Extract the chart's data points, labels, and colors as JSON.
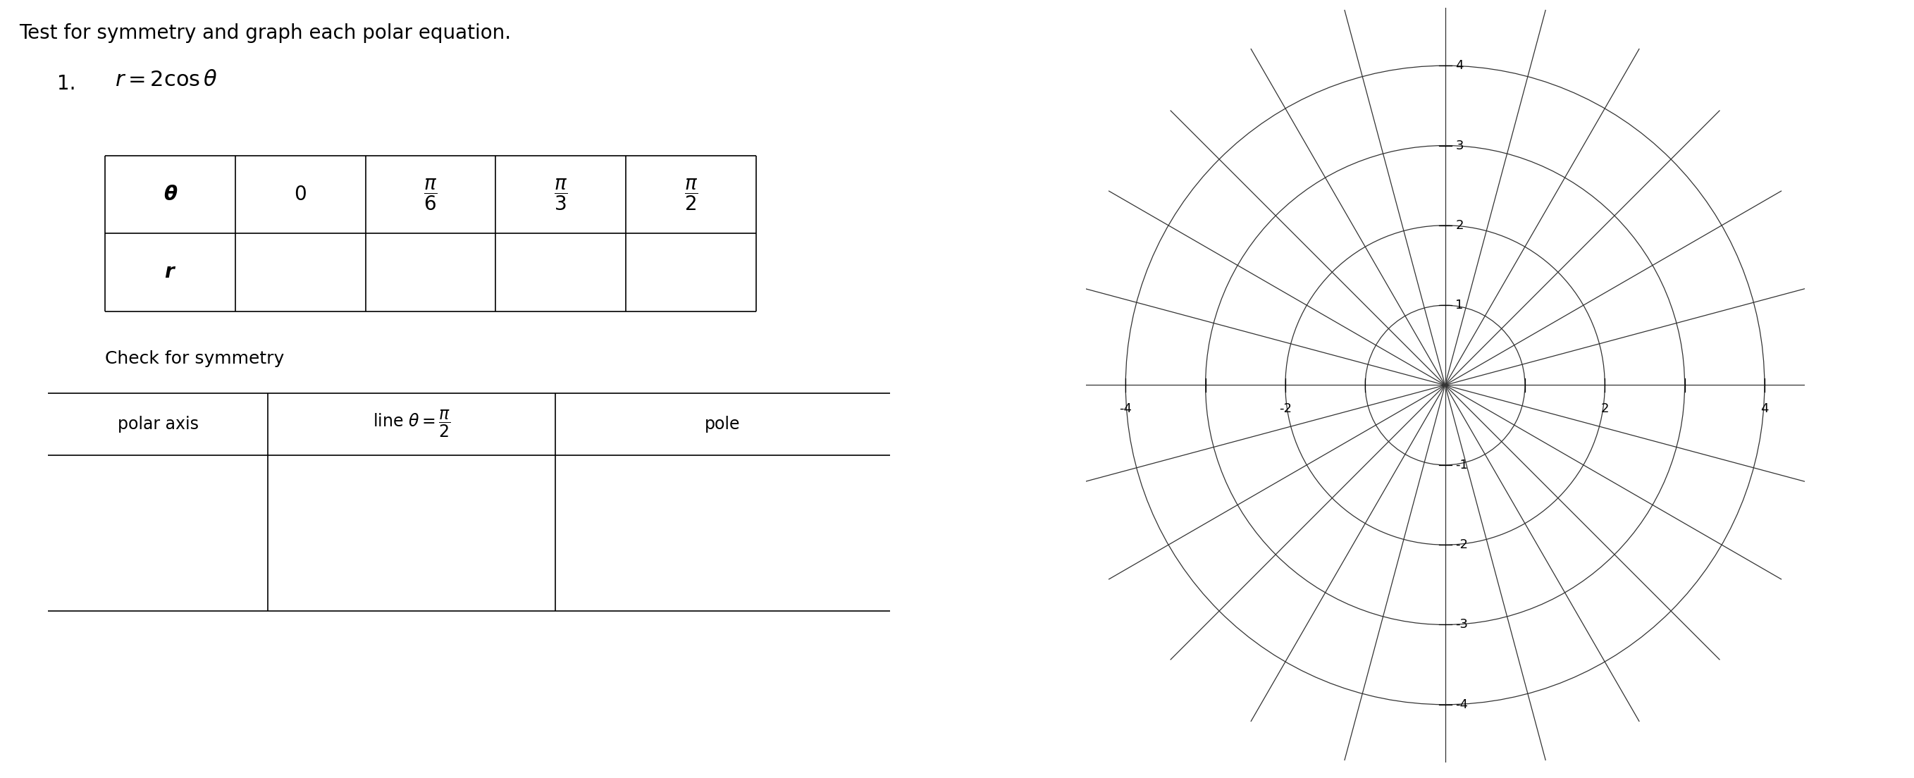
{
  "title": "Test for symmetry and graph each polar equation.",
  "eq_number": "1.",
  "eq_math": "$r = 2\\cos\\theta$",
  "table_theta_headers": [
    "$\\boldsymbol{\\theta}$",
    "$0$",
    "$\\dfrac{\\pi}{6}$",
    "$\\dfrac{\\pi}{3}$",
    "$\\dfrac{\\pi}{2}$"
  ],
  "table_r_header": "$\\boldsymbol{r}$",
  "check_title": "Check for symmetry",
  "sym_col1": "polar axis",
  "sym_col2": "line $\\theta = \\dfrac{\\pi}{2}$",
  "sym_col3": "pole",
  "polar_radii": [
    1,
    2,
    3,
    4
  ],
  "polar_angles_deg": [
    0,
    15,
    30,
    45,
    60,
    75,
    90,
    105,
    120,
    135,
    150,
    165
  ],
  "axis_limit": 4.5,
  "axis_ticks_x": [
    -4,
    -3,
    -2,
    -1,
    1,
    2,
    3,
    4
  ],
  "axis_ticks_y": [
    -4,
    -3,
    -2,
    -1,
    1,
    2,
    3,
    4
  ],
  "bg_color": "#ffffff",
  "line_color": "#000000",
  "grid_color": "#333333",
  "font_size_title": 20,
  "font_size_eq": 20,
  "font_size_table": 18,
  "font_size_check": 18,
  "font_size_axis": 13
}
